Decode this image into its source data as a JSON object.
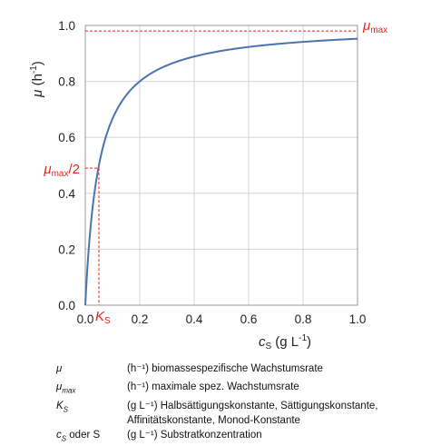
{
  "chart_data": {
    "type": "line",
    "xlim": [
      0,
      1.0
    ],
    "ylim": [
      0,
      1.0
    ],
    "xticks": [
      "0.0",
      "0.2",
      "0.4",
      "0.6",
      "0.8",
      "1.0"
    ],
    "yticks": [
      "0.0",
      "0.2",
      "0.4",
      "0.6",
      "0.8",
      "1.0"
    ],
    "xlabel": {
      "main": "c",
      "sub": "S",
      "rest": " (g L",
      "sup": "-1",
      "end": ")"
    },
    "ylabel": {
      "main": "μ",
      "rest": " (h",
      "sup": "-1",
      "end": ")"
    },
    "grid": true,
    "series": [
      {
        "equation": "mu = mu_max * c / (Ks + c)",
        "mu_max": 1.0,
        "Ks": 0.05,
        "color": "#4c72b0"
      }
    ],
    "annotations": {
      "mu_max": {
        "value": 0.98,
        "label_main": "μ",
        "label_sub": "max",
        "label_rest": ""
      },
      "half": {
        "value": 0.49,
        "label_main": "μ",
        "label_sub": "max",
        "label_rest": "/2"
      },
      "Ks": {
        "value": 0.05,
        "label_main": "K",
        "label_sub": "S"
      },
      "color": "#e8231f"
    }
  },
  "legend": [
    {
      "sym": "μ",
      "sym_sub": "",
      "desc": "(h⁻¹) biomassespezifische Wachstumsrate"
    },
    {
      "sym": "μ",
      "sym_sub": "max",
      "desc": "(h⁻¹) maximale spez. Wachstumsrate"
    },
    {
      "sym": "K",
      "sym_sub": "S",
      "desc": "(g L⁻¹) Halbsättigungskonstante, Sättigungskonstante, Affinitätskonstante, Monod-Konstante"
    },
    {
      "sym": "c",
      "sym_sub": "S",
      "sym_rest": " oder S",
      "desc": "(g L⁻¹) Substratkonzentration"
    }
  ]
}
